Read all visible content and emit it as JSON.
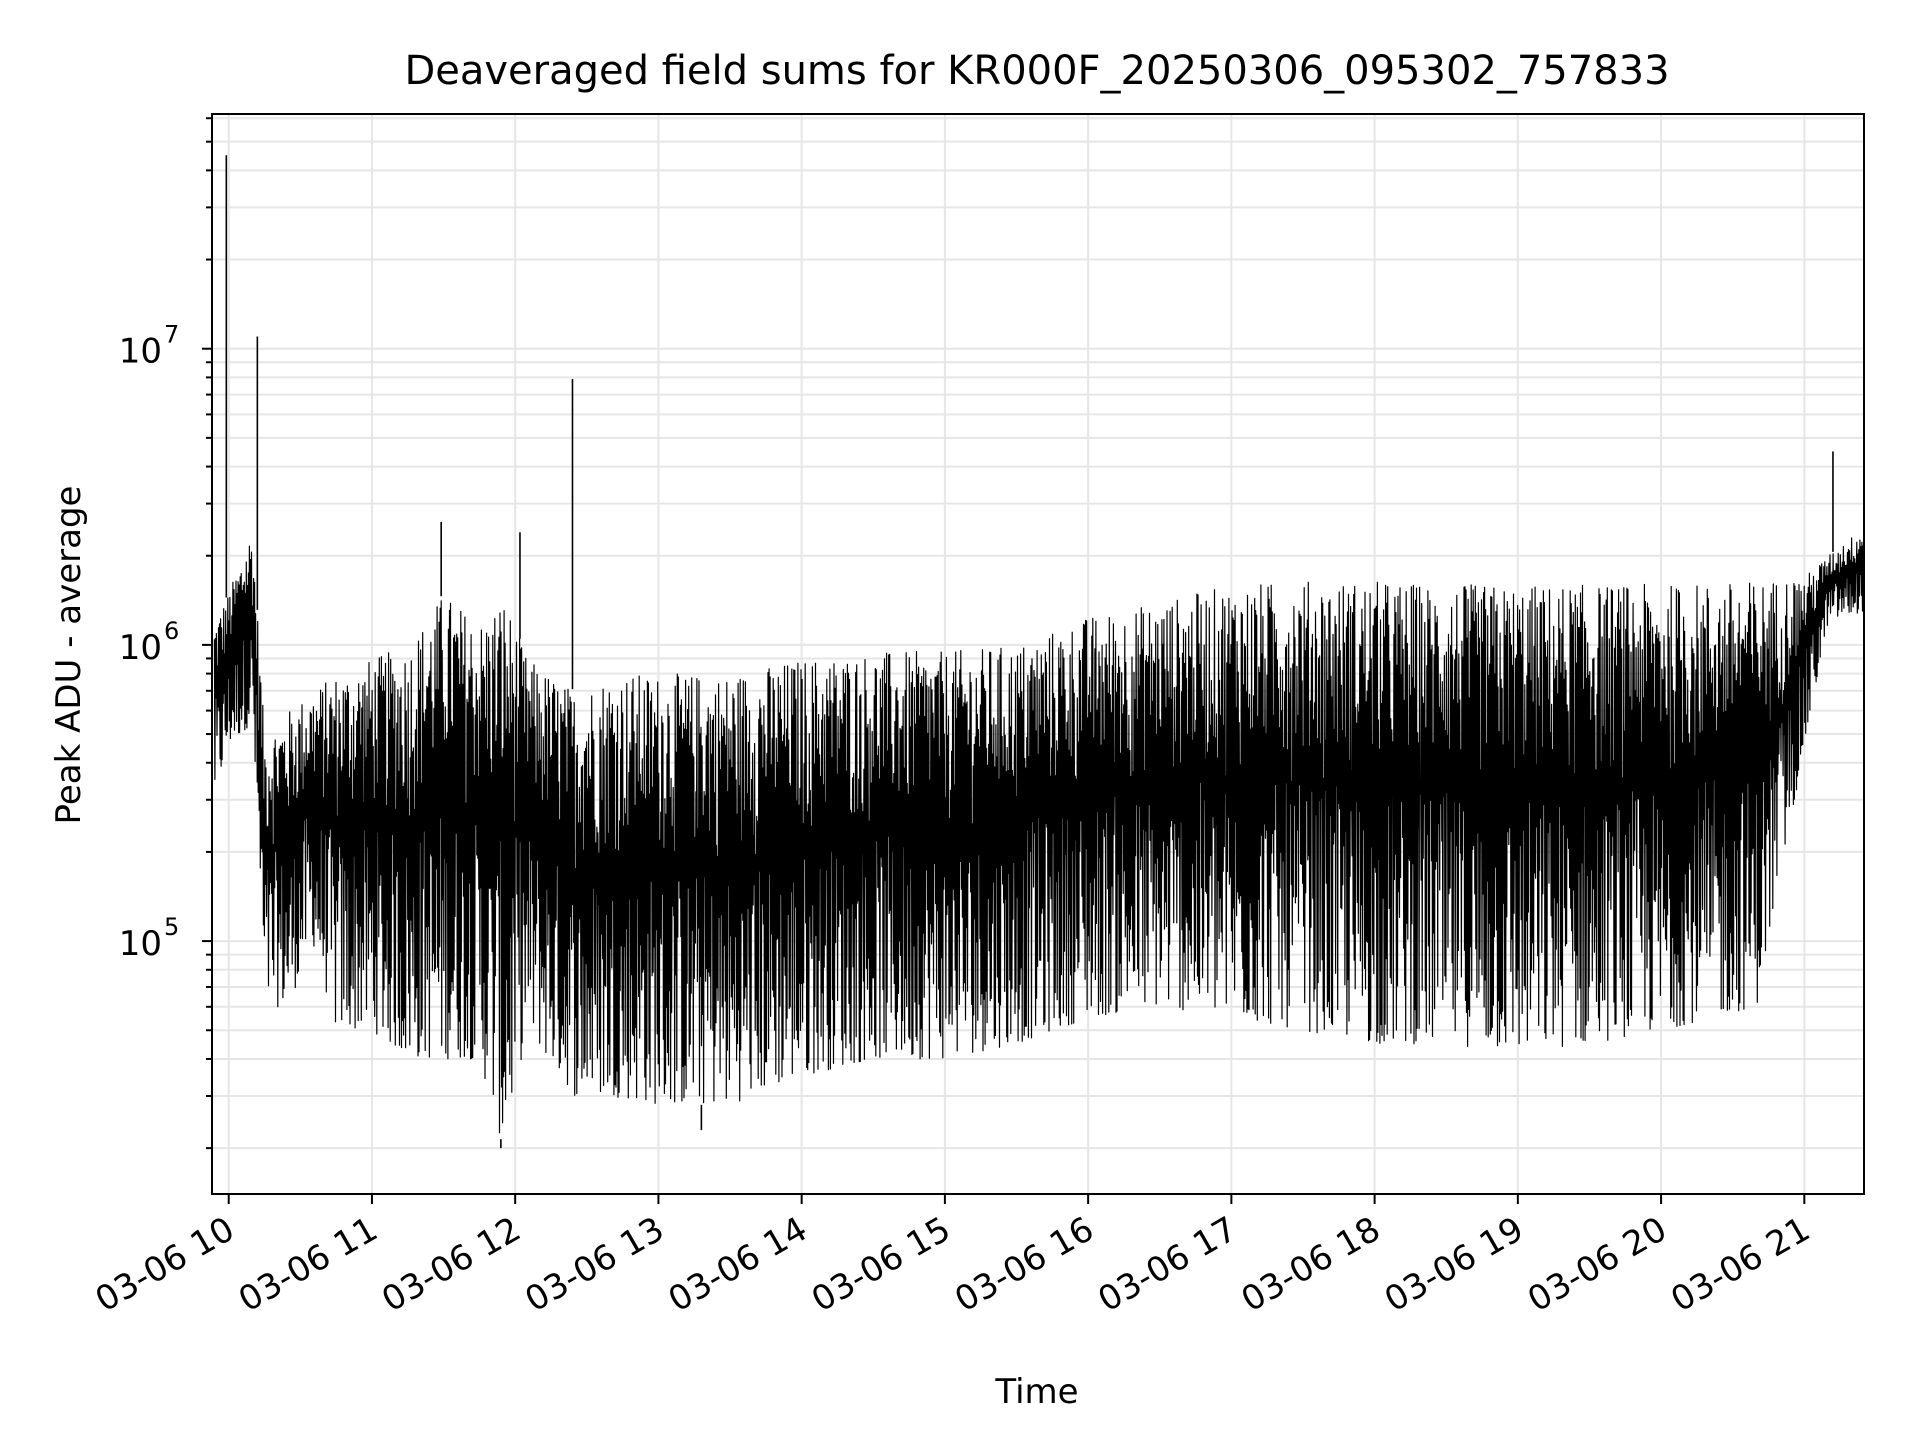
{
  "chart_data": {
    "type": "line",
    "title": "Deaveraged field sums for KR000F_20250306_095302_757833",
    "xlabel": "Time",
    "ylabel": "Peak ADU - average",
    "y_scale": "log",
    "ylim": [
      14000,
      62000000
    ],
    "xlim": [
      "2025-03-06 09:53",
      "2025-03-06 21:25"
    ],
    "x_ticks": [
      "03-06 10",
      "03-06 11",
      "03-06 12",
      "03-06 13",
      "03-06 14",
      "03-06 15",
      "03-06 16",
      "03-06 17",
      "03-06 18",
      "03-06 19",
      "03-06 20",
      "03-06 21"
    ],
    "y_ticks": [
      {
        "value": 100000,
        "base": "10",
        "exp": "5"
      },
      {
        "value": 1000000,
        "base": "10",
        "exp": "6"
      },
      {
        "value": 10000000,
        "base": "10",
        "exp": "7"
      }
    ],
    "grid": true,
    "line_color": "#000000",
    "series": [
      {
        "note_on_sampling": "",
        "x": [
          "2025-03-06 09:54",
          "2025-03-06 10:00",
          "2025-03-06 10:10",
          "2025-03-06 10:15",
          "2025-03-06 10:25",
          "2025-03-06 10:35",
          "2025-03-06 10:45",
          "2025-03-06 11:00",
          "2025-03-06 11:15",
          "2025-03-06 11:30",
          "2025-03-06 11:45",
          "2025-03-06 11:55",
          "2025-03-06 12:05",
          "2025-03-06 12:25",
          "2025-03-06 12:40",
          "2025-03-06 13:00",
          "2025-03-06 13:30",
          "2025-03-06 14:00",
          "2025-03-06 14:30",
          "2025-03-06 15:00",
          "2025-03-06 15:30",
          "2025-03-06 16:00",
          "2025-03-06 16:30",
          "2025-03-06 17:00",
          "2025-03-06 17:30",
          "2025-03-06 18:00",
          "2025-03-06 18:30",
          "2025-03-06 19:00",
          "2025-03-06 19:30",
          "2025-03-06 20:00",
          "2025-03-06 20:40",
          "2025-03-06 21:00",
          "2025-03-06 21:10",
          "2025-03-06 21:25"
        ],
        "low": [
          300000,
          450000,
          550000,
          60000,
          60000,
          100000,
          50000,
          50000,
          40000,
          40000,
          40000,
          20000,
          50000,
          30000,
          30000,
          28000,
          28000,
          35000,
          40000,
          40000,
          45000,
          55000,
          60000,
          55000,
          50000,
          45000,
          45000,
          42000,
          45000,
          50000,
          60000,
          450000,
          1200000,
          1300000
        ],
        "high": [
          1200000,
          1500000,
          2500000,
          500000,
          600000,
          700000,
          800000,
          900000,
          1000000,
          1500000,
          1200000,
          1500000,
          900000,
          700000,
          800000,
          800000,
          800000,
          900000,
          950000,
          950000,
          1000000,
          1250000,
          1400000,
          1600000,
          1650000,
          1650000,
          1600000,
          1600000,
          1600000,
          1600000,
          1650000,
          1700000,
          2000000,
          2500000
        ],
        "spikes": [
          {
            "x": "2025-03-06 09:59",
            "y": 45000000
          },
          {
            "x": "2025-03-06 10:12",
            "y": 11000000
          },
          {
            "x": "2025-03-06 12:24",
            "y": 7900000
          },
          {
            "x": "2025-03-06 12:02",
            "y": 2400000
          },
          {
            "x": "2025-03-06 11:29",
            "y": 2600000
          },
          {
            "x": "2025-03-06 21:12",
            "y": 4500000
          },
          {
            "x": "2025-03-06 11:54",
            "y": 20000
          },
          {
            "x": "2025-03-06 13:18",
            "y": 23000
          }
        ]
      }
    ]
  }
}
